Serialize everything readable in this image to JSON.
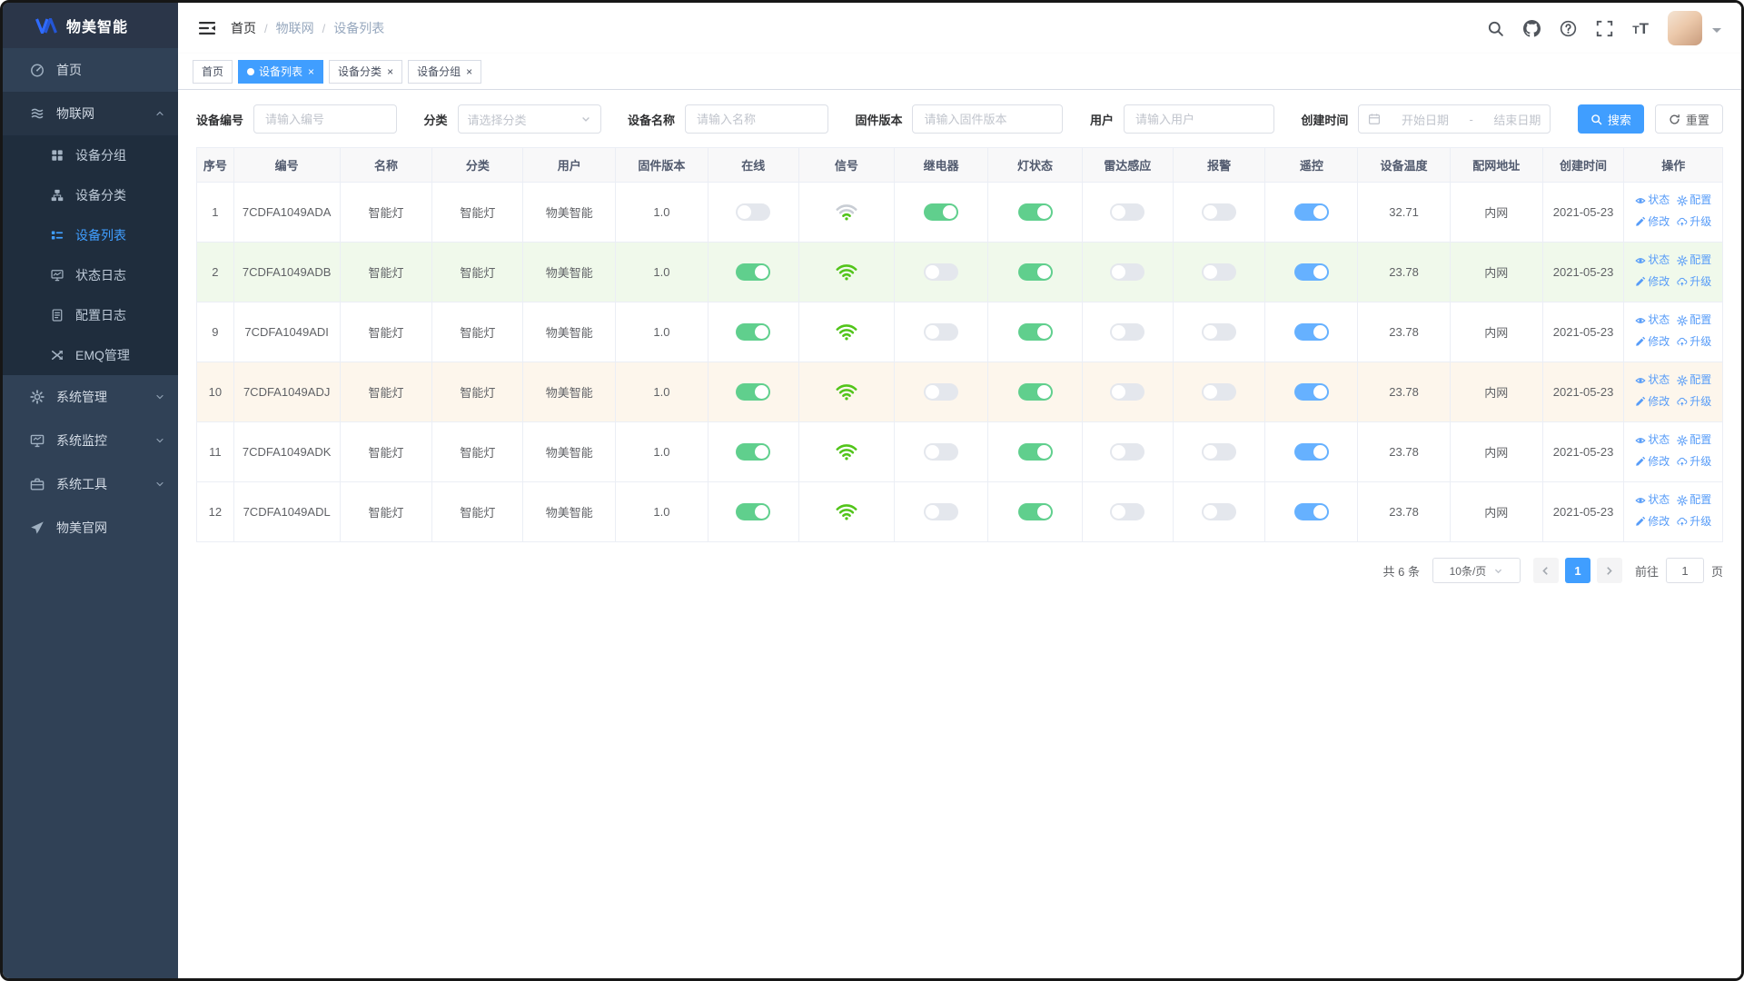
{
  "colors": {
    "primary": "#409eff",
    "sidebar_bg": "#304156",
    "submenu_bg": "#1f2d3d",
    "toggle_on_green": "#60cf8d",
    "toggle_on_blue": "#66b1ff",
    "toggle_off": "#e4e7ed",
    "wifi_green": "#52c41a",
    "row_success_bg": "#f0f9eb",
    "row_warning_bg": "#fdf6ec",
    "link_blue": "#579cf8"
  },
  "sidebar": {
    "logo_text": "物美智能",
    "logo_icon": "brand-logo-icon",
    "menu": [
      {
        "key": "home",
        "label": "首页",
        "icon": "dashboard-icon"
      },
      {
        "key": "iot",
        "label": "物联网",
        "icon": "iot-icon",
        "expanded": true,
        "children": [
          {
            "key": "device-group",
            "label": "设备分组",
            "icon": "grid-icon"
          },
          {
            "key": "device-category",
            "label": "设备分类",
            "icon": "tree-icon"
          },
          {
            "key": "device-list",
            "label": "设备列表",
            "icon": "list-icon",
            "active": true
          },
          {
            "key": "status-log",
            "label": "状态日志",
            "icon": "status-log-icon"
          },
          {
            "key": "config-log",
            "label": "配置日志",
            "icon": "config-log-icon"
          },
          {
            "key": "emq",
            "label": "EMQ管理",
            "icon": "shuffle-icon"
          }
        ]
      },
      {
        "key": "system-admin",
        "label": "系统管理",
        "icon": "gear-icon",
        "has_children": true
      },
      {
        "key": "system-monitor",
        "label": "系统监控",
        "icon": "monitor-icon",
        "has_children": true
      },
      {
        "key": "system-tools",
        "label": "系统工具",
        "icon": "toolbox-icon",
        "has_children": true
      },
      {
        "key": "official-site",
        "label": "物美官网",
        "icon": "paper-plane-icon"
      }
    ]
  },
  "navbar": {
    "breadcrumb": [
      "首页",
      "物联网",
      "设备列表"
    ],
    "separator": "/",
    "right_icons": [
      "search-icon",
      "github-icon",
      "question-icon",
      "fullscreen-icon",
      "font-size-icon",
      "avatar",
      "caret-down-icon"
    ]
  },
  "tabs": [
    {
      "key": "home",
      "label": "首页",
      "active": false,
      "closable": false
    },
    {
      "key": "device-list",
      "label": "设备列表",
      "active": true,
      "closable": true
    },
    {
      "key": "device-category",
      "label": "设备分类",
      "active": false,
      "closable": true
    },
    {
      "key": "device-group",
      "label": "设备分组",
      "active": false,
      "closable": true
    }
  ],
  "filters": {
    "fields": [
      {
        "key": "device-code",
        "label": "设备编号",
        "type": "input",
        "placeholder": "请输入编号"
      },
      {
        "key": "category",
        "label": "分类",
        "type": "select",
        "placeholder": "请选择分类"
      },
      {
        "key": "device-name",
        "label": "设备名称",
        "type": "input",
        "placeholder": "请输入名称"
      },
      {
        "key": "firmware",
        "label": "固件版本",
        "type": "input",
        "placeholder": "请输入固件版本"
      },
      {
        "key": "user",
        "label": "用户",
        "type": "input",
        "placeholder": "请输入用户"
      },
      {
        "key": "created",
        "label": "创建时间",
        "type": "daterange",
        "start_placeholder": "开始日期",
        "separator": "-",
        "end_placeholder": "结束日期"
      }
    ],
    "search_label": "搜索",
    "reset_label": "重置"
  },
  "table": {
    "headers": [
      "序号",
      "编号",
      "名称",
      "分类",
      "用户",
      "固件版本",
      "在线",
      "信号",
      "继电器",
      "灯状态",
      "雷达感应",
      "报警",
      "遥控",
      "设备温度",
      "配网地址",
      "创建时间",
      "操作"
    ],
    "ops": {
      "status": "状态",
      "config": "配置",
      "edit": "修改",
      "upgrade": "升级"
    },
    "rows": [
      {
        "index": "1",
        "code": "7CDFA1049ADA",
        "name": "智能灯",
        "category": "智能灯",
        "user": "物美智能",
        "firmware": "1.0",
        "online": false,
        "signal": "weak",
        "relay": true,
        "light": true,
        "radar": false,
        "alarm": false,
        "remote": true,
        "temp": "32.71",
        "network": "内网",
        "created": "2021-05-23",
        "highlight": "none"
      },
      {
        "index": "2",
        "code": "7CDFA1049ADB",
        "name": "智能灯",
        "category": "智能灯",
        "user": "物美智能",
        "firmware": "1.0",
        "online": true,
        "signal": "strong",
        "relay": false,
        "light": true,
        "radar": false,
        "alarm": false,
        "remote": true,
        "temp": "23.78",
        "network": "内网",
        "created": "2021-05-23",
        "highlight": "success"
      },
      {
        "index": "9",
        "code": "7CDFA1049ADI",
        "name": "智能灯",
        "category": "智能灯",
        "user": "物美智能",
        "firmware": "1.0",
        "online": true,
        "signal": "strong",
        "relay": false,
        "light": true,
        "radar": false,
        "alarm": false,
        "remote": true,
        "temp": "23.78",
        "network": "内网",
        "created": "2021-05-23",
        "highlight": "none"
      },
      {
        "index": "10",
        "code": "7CDFA1049ADJ",
        "name": "智能灯",
        "category": "智能灯",
        "user": "物美智能",
        "firmware": "1.0",
        "online": true,
        "signal": "strong",
        "relay": false,
        "light": true,
        "radar": false,
        "alarm": false,
        "remote": true,
        "temp": "23.78",
        "network": "内网",
        "created": "2021-05-23",
        "highlight": "warning"
      },
      {
        "index": "11",
        "code": "7CDFA1049ADK",
        "name": "智能灯",
        "category": "智能灯",
        "user": "物美智能",
        "firmware": "1.0",
        "online": true,
        "signal": "strong",
        "relay": false,
        "light": true,
        "radar": false,
        "alarm": false,
        "remote": true,
        "temp": "23.78",
        "network": "内网",
        "created": "2021-05-23",
        "highlight": "none"
      },
      {
        "index": "12",
        "code": "7CDFA1049ADL",
        "name": "智能灯",
        "category": "智能灯",
        "user": "物美智能",
        "firmware": "1.0",
        "online": true,
        "signal": "strong",
        "relay": false,
        "light": true,
        "radar": false,
        "alarm": false,
        "remote": true,
        "temp": "23.78",
        "network": "内网",
        "created": "2021-05-23",
        "highlight": "none"
      }
    ]
  },
  "pagination": {
    "total": "共 6 条",
    "page_size": "10条/页",
    "current_page": "1",
    "goto_label": "前往",
    "goto_value": "1",
    "page_unit": "页"
  }
}
